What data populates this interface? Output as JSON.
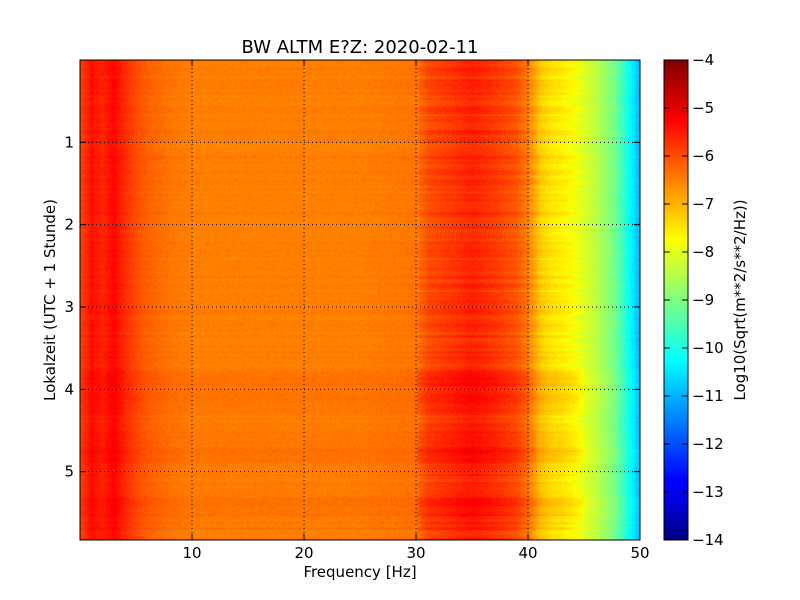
{
  "chart_data": {
    "type": "heatmap",
    "title": "BW ALTM E?Z: 2020-02-11",
    "xlabel": "Frequency [Hz]",
    "ylabel": "Lokalzeit (UTC + 1 Stunde)",
    "xlim": [
      0,
      50
    ],
    "ylim": [
      0,
      5.83
    ],
    "y_inverted": true,
    "x_ticks": [
      10,
      20,
      30,
      40,
      50
    ],
    "x_tick_labels": [
      "10",
      "20",
      "30",
      "40",
      "50"
    ],
    "y_ticks": [
      1,
      2,
      3,
      4,
      5
    ],
    "y_tick_labels": [
      "1",
      "2",
      "3",
      "4",
      "5"
    ],
    "grid": true,
    "colormap": "jet",
    "colorbar": {
      "label": "Log10(Sqrt(m**2/s**2/Hz))",
      "min": -14,
      "max": -4,
      "ticks": [
        -4,
        -5,
        -6,
        -7,
        -8,
        -9,
        -10,
        -11,
        -12,
        -13,
        -14
      ],
      "tick_labels": [
        "−4",
        "−5",
        "−6",
        "−7",
        "−8",
        "−9",
        "−10",
        "−11",
        "−12",
        "−13",
        "−14"
      ]
    },
    "spectral_profile": {
      "frequencies_hz": [
        0,
        1,
        2,
        3,
        4,
        5,
        6,
        8,
        10,
        15,
        20,
        25,
        30,
        31,
        33,
        35,
        37,
        39,
        40,
        41,
        42,
        43,
        44,
        45,
        46,
        47,
        48,
        49,
        50
      ],
      "log10_amplitude": [
        -5.9,
        -5.4,
        -5.6,
        -5.3,
        -5.7,
        -6.0,
        -6.2,
        -6.4,
        -6.5,
        -6.5,
        -6.5,
        -6.5,
        -6.4,
        -6.0,
        -5.8,
        -5.6,
        -5.8,
        -6.1,
        -6.5,
        -7.2,
        -7.5,
        -7.6,
        -7.8,
        -8.1,
        -8.4,
        -8.8,
        -9.3,
        -10.2,
        -11.0
      ]
    },
    "elevated_hours": [
      4.0,
      4.7,
      5.4
    ]
  }
}
